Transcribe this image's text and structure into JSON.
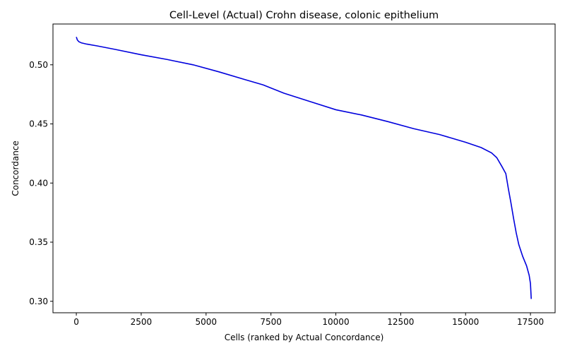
{
  "chart_data": {
    "type": "line",
    "title": "Cell-Level (Actual) Crohn disease, colonic epithelium",
    "xlabel": "Cells (ranked by Actual Concordance)",
    "ylabel": "Concordance",
    "xlim": [
      -900,
      18450
    ],
    "ylim": [
      0.2903,
      0.5345
    ],
    "xticks": [
      0,
      2500,
      5000,
      7500,
      10000,
      12500,
      15000,
      17500
    ],
    "xtick_labels": [
      "0",
      "2500",
      "5000",
      "7500",
      "10000",
      "12500",
      "15000",
      "17500"
    ],
    "yticks": [
      0.3,
      0.35,
      0.4,
      0.45,
      0.5
    ],
    "ytick_labels": [
      "0.30",
      "0.35",
      "0.40",
      "0.45",
      "0.50"
    ],
    "grid": false,
    "series": [
      {
        "color": "#0000dd",
        "points": [
          [
            0,
            0.5235
          ],
          [
            40,
            0.521
          ],
          [
            100,
            0.5195
          ],
          [
            200,
            0.5185
          ],
          [
            400,
            0.5175
          ],
          [
            800,
            0.516
          ],
          [
            1500,
            0.513
          ],
          [
            2500,
            0.5085
          ],
          [
            3500,
            0.5045
          ],
          [
            4500,
            0.5
          ],
          [
            5500,
            0.494
          ],
          [
            6500,
            0.4875
          ],
          [
            7200,
            0.483
          ],
          [
            8000,
            0.476
          ],
          [
            9000,
            0.469
          ],
          [
            10000,
            0.462
          ],
          [
            11000,
            0.4575
          ],
          [
            12000,
            0.452
          ],
          [
            13000,
            0.446
          ],
          [
            14000,
            0.441
          ],
          [
            15000,
            0.4345
          ],
          [
            15600,
            0.43
          ],
          [
            16000,
            0.4255
          ],
          [
            16200,
            0.4215
          ],
          [
            16400,
            0.414
          ],
          [
            16550,
            0.408
          ],
          [
            16650,
            0.395
          ],
          [
            16750,
            0.383
          ],
          [
            16850,
            0.37
          ],
          [
            16950,
            0.358
          ],
          [
            17050,
            0.348
          ],
          [
            17200,
            0.338
          ],
          [
            17350,
            0.33
          ],
          [
            17450,
            0.322
          ],
          [
            17500,
            0.315
          ],
          [
            17530,
            0.302
          ]
        ]
      }
    ]
  }
}
